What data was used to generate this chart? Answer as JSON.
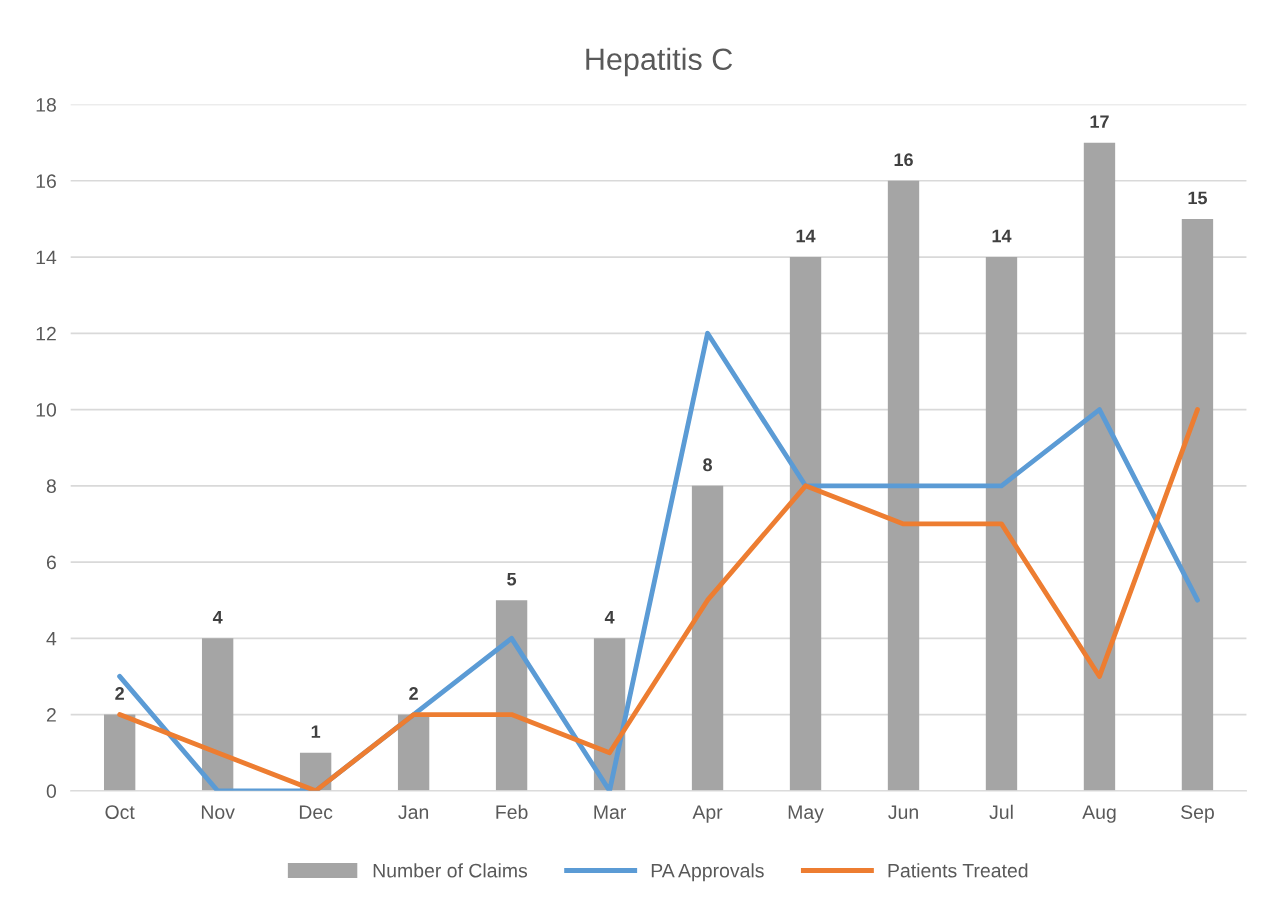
{
  "chart_data": {
    "type": "bar",
    "title": "Hepatitis C",
    "categories": [
      "Oct",
      "Nov",
      "Dec",
      "Jan",
      "Feb",
      "Mar",
      "Apr",
      "May",
      "Jun",
      "Jul",
      "Aug",
      "Sep"
    ],
    "series": [
      {
        "name": "Number of Claims",
        "color": "#a5a5a5",
        "values": [
          2,
          4,
          1,
          2,
          5,
          4,
          8,
          14,
          16,
          14,
          17,
          15
        ],
        "value_labels": [
          "2",
          "4",
          "1",
          "2",
          "5",
          "4",
          "8",
          "14",
          "16",
          "14",
          "17",
          "15"
        ]
      },
      {
        "name": "PA Approvals",
        "type": "line",
        "color": "#5b9bd5",
        "values": [
          3,
          0,
          0,
          2,
          4,
          0,
          12,
          8,
          8,
          8,
          10,
          5
        ]
      },
      {
        "name": "Patients Treated",
        "type": "line",
        "color": "#ed7d31",
        "values": [
          2,
          1,
          0,
          2,
          2,
          1,
          5,
          8,
          7,
          7,
          3,
          10
        ]
      }
    ],
    "ylim": [
      0,
      18
    ],
    "yticks": [
      0,
      2,
      4,
      6,
      8,
      10,
      12,
      14,
      16,
      18
    ],
    "grid": "y",
    "legend": "bottom",
    "marker": "none",
    "line_style": "solid"
  }
}
